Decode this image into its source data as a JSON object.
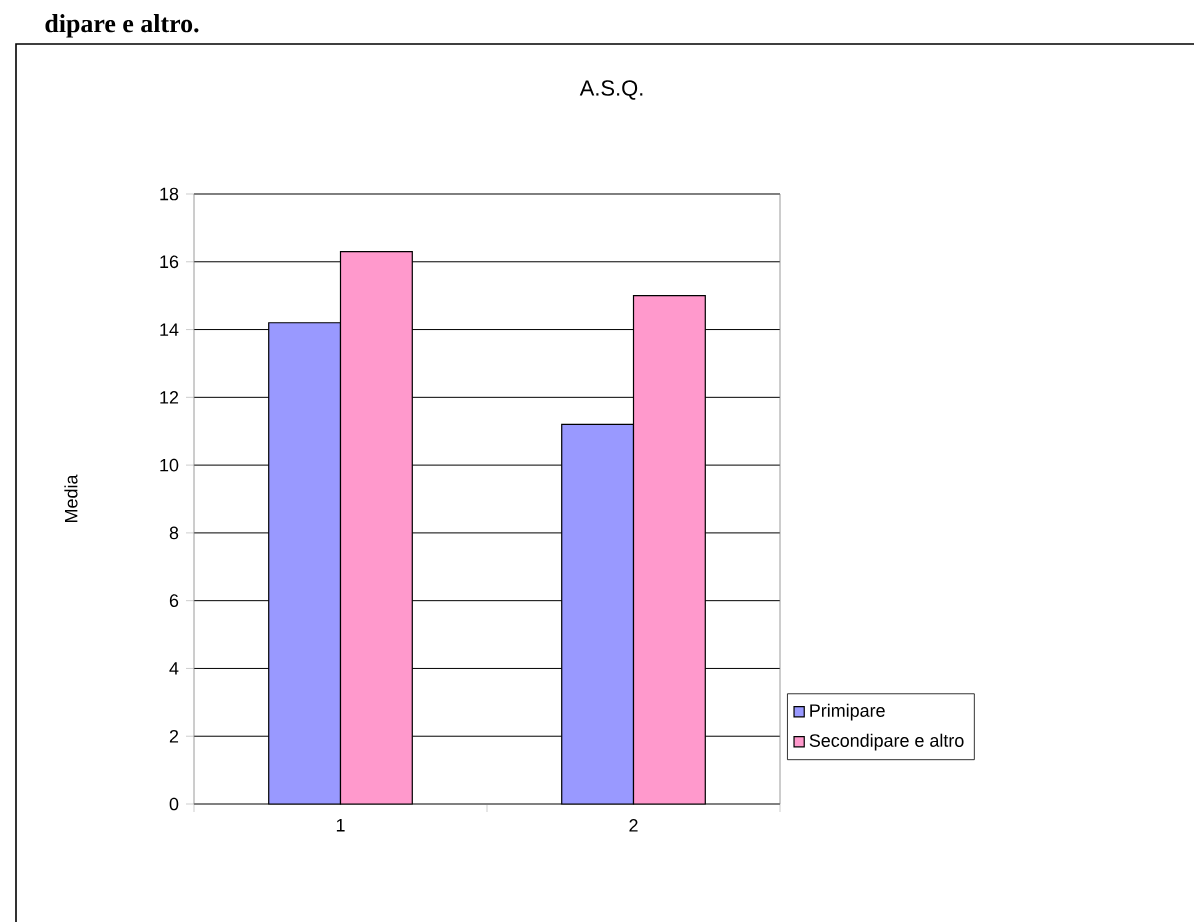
{
  "chart_data": {
    "type": "bar",
    "title": "A.S.Q.",
    "ylabel": "Media",
    "annotations": [
      "dipare e altro."
    ],
    "categories": [
      "1",
      "2"
    ],
    "series": [
      {
        "name": "Primipare",
        "color": "#9999ff",
        "values": [
          14.2,
          11.2
        ]
      },
      {
        "name": "Secondipare e altro",
        "color": "#ff99cc",
        "values": [
          16.3,
          15.0
        ]
      }
    ],
    "ylim": [
      0,
      18
    ],
    "yticks": [
      0,
      2,
      4,
      6,
      8,
      10,
      12,
      14,
      16,
      18
    ],
    "grid": "y",
    "legend": "right"
  }
}
